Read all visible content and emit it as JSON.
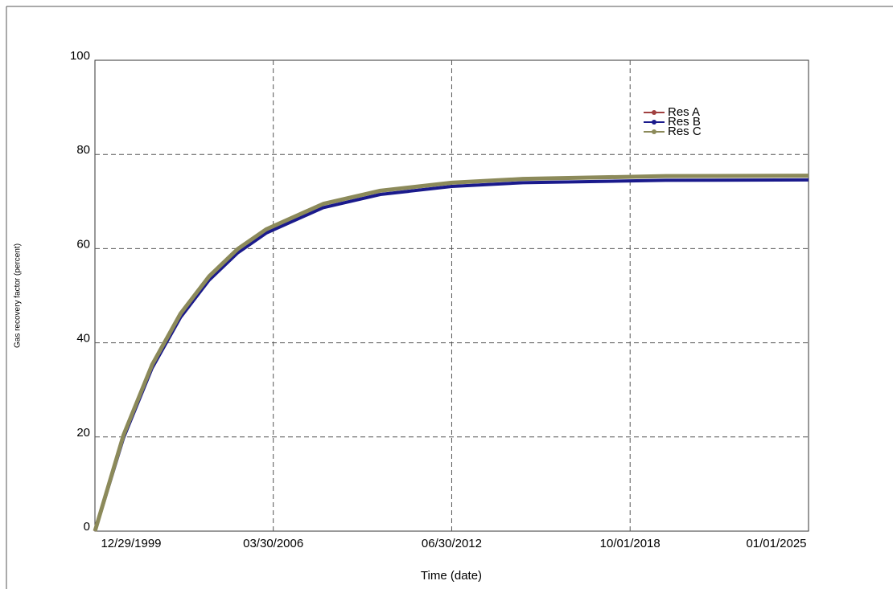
{
  "chart_data": {
    "type": "line",
    "x_label": "Time  (date)",
    "y_label": "Gas recovery factor  (percent)",
    "x": [
      "12/29/1999",
      "12/29/2000",
      "12/29/2001",
      "12/29/2002",
      "12/29/2003",
      "12/29/2004",
      "12/29/2005",
      "12/29/2007",
      "12/29/2009",
      "06/30/2012",
      "12/29/2014",
      "12/29/2019",
      "01/01/2025"
    ],
    "series": [
      {
        "name": "Res A",
        "color": "#a04040",
        "values": [
          0,
          20.4,
          35.3,
          46.2,
          54.1,
          59.9,
          64.1,
          69.5,
          72.3,
          74.0,
          74.8,
          75.4,
          75.5
        ]
      },
      {
        "name": "Res B",
        "color": "#1a1a8c",
        "values": [
          0,
          19.8,
          34.6,
          45.4,
          53.3,
          59.1,
          63.3,
          68.7,
          71.5,
          73.2,
          74.0,
          74.5,
          74.6
        ]
      },
      {
        "name": "Res C",
        "color": "#8c8a5a",
        "values": [
          0,
          20.4,
          35.3,
          46.2,
          54.1,
          59.9,
          64.1,
          69.5,
          72.3,
          74.0,
          74.8,
          75.4,
          75.5
        ]
      }
    ],
    "xlim": [
      "12/29/1999",
      "01/01/2025"
    ],
    "xticks": [
      "12/29/1999",
      "03/30/2006",
      "06/30/2012",
      "10/01/2018",
      "01/01/2025"
    ],
    "ylim": [
      0,
      100
    ],
    "yticks": [
      0,
      20,
      40,
      60,
      80,
      100
    ],
    "grid": true,
    "legend": "top-right"
  }
}
